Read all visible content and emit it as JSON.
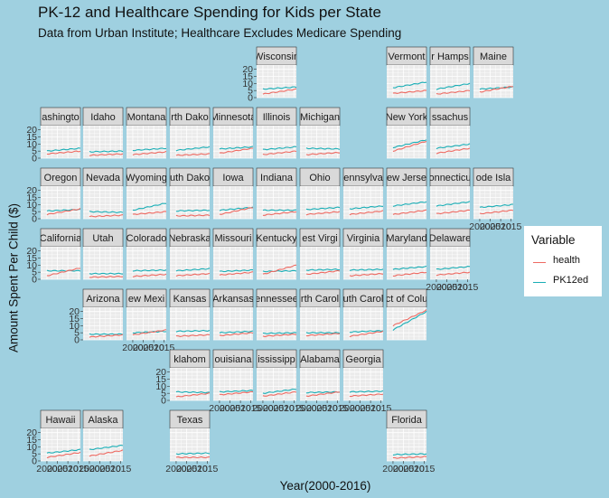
{
  "title": "PK-12 and Healthcare Spending for Kids per State",
  "subtitle": "Data from Urban Institute; Healthcare Excludes Medicare Spending",
  "colors": {
    "health": "#ee6a62",
    "PK12ed": "#1aaeb6",
    "background": "#9fd0e0",
    "panel": "#ebebeb",
    "strip": "#d9d9d9"
  },
  "chart_data": {
    "type": "line",
    "title": "PK-12 and Healthcare Spending for Kids per State",
    "subtitle": "Data from Urban Institute; Healthcare Excludes Medicare Spending",
    "xlabel": "Year(2000-2016)",
    "ylabel": "Amount Spent Per Child  ($)",
    "xlim": [
      1997,
      2016
    ],
    "ylim": [
      0,
      23
    ],
    "y_ticks": [
      "0",
      "5",
      "10",
      "15",
      "20"
    ],
    "x_ticks": [
      "2000",
      "2005",
      "2010",
      "2015"
    ],
    "x_tick_values": [
      2000,
      2005,
      2010,
      2015
    ],
    "grid": true,
    "legend": {
      "title": "Variable",
      "position": "right",
      "entries": [
        "health",
        "PK12ed"
      ]
    },
    "panels": [
      {
        "name": "Wisconsin",
        "strip": "Wisconsin",
        "row": 0,
        "col": 5,
        "health": [
          2.5,
          6
        ],
        "pk12": [
          6,
          7.5
        ]
      },
      {
        "name": "Vermont",
        "strip": "Vermont",
        "row": 0,
        "col": 8,
        "health": [
          3,
          5
        ],
        "pk12": [
          7,
          11
        ]
      },
      {
        "name": "New Hampshire",
        "strip": "r Hamps",
        "row": 0,
        "col": 9,
        "health": [
          2.5,
          5
        ],
        "pk12": [
          6,
          10
        ]
      },
      {
        "name": "Maine",
        "strip": "Maine",
        "row": 0,
        "col": 10,
        "health": [
          4,
          8
        ],
        "pk12": [
          6,
          7.5
        ]
      },
      {
        "name": "Washington",
        "strip": "ashingto",
        "row": 1,
        "col": 0,
        "health": [
          3,
          5
        ],
        "pk12": [
          5,
          7
        ]
      },
      {
        "name": "Idaho",
        "strip": "Idaho",
        "row": 1,
        "col": 1,
        "health": [
          2,
          3
        ],
        "pk12": [
          4.5,
          5
        ]
      },
      {
        "name": "Montana",
        "strip": "Montana",
        "row": 1,
        "col": 2,
        "health": [
          2.5,
          4.5
        ],
        "pk12": [
          5.5,
          7
        ]
      },
      {
        "name": "North Dakota",
        "strip": "rth Dako",
        "row": 1,
        "col": 3,
        "health": [
          2,
          3
        ],
        "pk12": [
          5.5,
          8
        ]
      },
      {
        "name": "Minnesota",
        "strip": "Minnesota",
        "row": 1,
        "col": 4,
        "health": [
          3.5,
          7
        ],
        "pk12": [
          6.5,
          8
        ]
      },
      {
        "name": "Illinois",
        "strip": "Illinois",
        "row": 1,
        "col": 5,
        "health": [
          2.5,
          5
        ],
        "pk12": [
          6,
          8
        ]
      },
      {
        "name": "Michigan",
        "strip": "Michigan",
        "row": 1,
        "col": 6,
        "health": [
          2.5,
          4
        ],
        "pk12": [
          7,
          6.5
        ]
      },
      {
        "name": "New York",
        "strip": "New York",
        "row": 1,
        "col": 8,
        "health": [
          5,
          12
        ],
        "pk12": [
          7.5,
          13
        ]
      },
      {
        "name": "Massachusetts",
        "strip": "ssachus",
        "row": 1,
        "col": 9,
        "health": [
          3.5,
          7
        ],
        "pk12": [
          7,
          10
        ]
      },
      {
        "name": "Oregon",
        "strip": "Oregon",
        "row": 2,
        "col": 0,
        "health": [
          3,
          7
        ],
        "pk12": [
          5.5,
          6.5
        ]
      },
      {
        "name": "Nevada",
        "strip": "Nevada",
        "row": 2,
        "col": 1,
        "health": [
          1.5,
          2.5
        ],
        "pk12": [
          5,
          4.5
        ]
      },
      {
        "name": "Wyoming",
        "strip": "Wyoming",
        "row": 2,
        "col": 2,
        "health": [
          3,
          5
        ],
        "pk12": [
          6,
          11
        ]
      },
      {
        "name": "South Dakota",
        "strip": "uth Dako",
        "row": 2,
        "col": 3,
        "health": [
          2,
          2.5
        ],
        "pk12": [
          5.5,
          6
        ]
      },
      {
        "name": "Iowa",
        "strip": "Iowa",
        "row": 2,
        "col": 4,
        "health": [
          3,
          8
        ],
        "pk12": [
          6,
          8
        ]
      },
      {
        "name": "Indiana",
        "strip": "Indiana",
        "row": 2,
        "col": 5,
        "health": [
          2.5,
          5
        ],
        "pk12": [
          6,
          6
        ]
      },
      {
        "name": "Ohio",
        "strip": "Ohio",
        "row": 2,
        "col": 6,
        "health": [
          3,
          5
        ],
        "pk12": [
          6.5,
          8
        ]
      },
      {
        "name": "Pennsylvania",
        "strip": "ennsylva",
        "row": 2,
        "col": 7,
        "health": [
          3,
          5.5
        ],
        "pk12": [
          7,
          9
        ]
      },
      {
        "name": "New Jersey",
        "strip": "ew Jerse",
        "row": 2,
        "col": 8,
        "health": [
          3,
          6
        ],
        "pk12": [
          9,
          12
        ]
      },
      {
        "name": "Connecticut",
        "strip": "onnecticu",
        "row": 2,
        "col": 9,
        "health": [
          3.5,
          6
        ],
        "pk12": [
          9,
          12
        ]
      },
      {
        "name": "Rhode Island",
        "strip": "ode Isla",
        "row": 2,
        "col": 10,
        "health": [
          3.5,
          6
        ],
        "pk12": [
          8,
          10
        ]
      },
      {
        "name": "California",
        "strip": "California",
        "row": 3,
        "col": 0,
        "health": [
          2.5,
          8
        ],
        "pk12": [
          6,
          6
        ]
      },
      {
        "name": "Utah",
        "strip": "Utah",
        "row": 3,
        "col": 1,
        "health": [
          1.5,
          2
        ],
        "pk12": [
          4,
          4
        ]
      },
      {
        "name": "Colorado",
        "strip": "Colorado",
        "row": 3,
        "col": 2,
        "health": [
          2,
          3.5
        ],
        "pk12": [
          6,
          6.5
        ]
      },
      {
        "name": "Nebraska",
        "strip": "Nebraska",
        "row": 3,
        "col": 3,
        "health": [
          2.5,
          4
        ],
        "pk12": [
          6,
          7.5
        ]
      },
      {
        "name": "Missouri",
        "strip": "Missouri",
        "row": 3,
        "col": 4,
        "health": [
          3,
          5
        ],
        "pk12": [
          5.5,
          6.5
        ]
      },
      {
        "name": "Kentucky",
        "strip": "Kentucky",
        "row": 3,
        "col": 5,
        "health": [
          3.5,
          10
        ],
        "pk12": [
          5.5,
          6
        ]
      },
      {
        "name": "West Virginia",
        "strip": "est Virgi",
        "row": 3,
        "col": 6,
        "health": [
          3.5,
          6
        ],
        "pk12": [
          6.5,
          7
        ]
      },
      {
        "name": "Virginia",
        "strip": "Virginia",
        "row": 3,
        "col": 7,
        "health": [
          2.5,
          4
        ],
        "pk12": [
          6.5,
          7
        ]
      },
      {
        "name": "Maryland",
        "strip": "Maryland",
        "row": 3,
        "col": 8,
        "health": [
          2.5,
          5
        ],
        "pk12": [
          7,
          9
        ]
      },
      {
        "name": "Delaware",
        "strip": "Delaware",
        "row": 3,
        "col": 9,
        "health": [
          3,
          5
        ],
        "pk12": [
          7,
          9
        ]
      },
      {
        "name": "Arizona",
        "strip": "Arizona",
        "row": 4,
        "col": 1,
        "health": [
          2,
          3.5
        ],
        "pk12": [
          4,
          4
        ]
      },
      {
        "name": "New Mexico",
        "strip": "ew Mexi",
        "row": 4,
        "col": 2,
        "health": [
          3.5,
          7
        ],
        "pk12": [
          5,
          6
        ]
      },
      {
        "name": "Kansas",
        "strip": "Kansas",
        "row": 4,
        "col": 3,
        "health": [
          2.5,
          3.5
        ],
        "pk12": [
          6,
          6.5
        ]
      },
      {
        "name": "Arkansas",
        "strip": "Arkansas",
        "row": 4,
        "col": 4,
        "health": [
          3,
          5
        ],
        "pk12": [
          5,
          6
        ]
      },
      {
        "name": "Tennessee",
        "strip": "ennessee",
        "row": 4,
        "col": 5,
        "health": [
          2.5,
          4
        ],
        "pk12": [
          4.5,
          5
        ]
      },
      {
        "name": "North Carolina",
        "strip": "rth Carol",
        "row": 4,
        "col": 6,
        "health": [
          3,
          4.5
        ],
        "pk12": [
          5,
          5
        ]
      },
      {
        "name": "South Carolina",
        "strip": "uth Carol",
        "row": 4,
        "col": 7,
        "health": [
          2.5,
          6
        ],
        "pk12": [
          5.5,
          6.5
        ]
      },
      {
        "name": "District of Columbia",
        "strip": "ct of Colu",
        "row": 4,
        "col": 8,
        "health": [
          10,
          21
        ],
        "pk12": [
          7,
          20
        ]
      },
      {
        "name": "Oklahoma",
        "strip": "klahom",
        "row": 5,
        "col": 3,
        "health": [
          2.5,
          5
        ],
        "pk12": [
          6,
          5.5
        ]
      },
      {
        "name": "Louisiana",
        "strip": "ouisiana",
        "row": 5,
        "col": 4,
        "health": [
          4,
          6
        ],
        "pk12": [
          6,
          7
        ]
      },
      {
        "name": "Mississippi",
        "strip": "ississipp",
        "row": 5,
        "col": 5,
        "health": [
          3,
          6
        ],
        "pk12": [
          5,
          8
        ]
      },
      {
        "name": "Alabama",
        "strip": "Alabama",
        "row": 5,
        "col": 6,
        "health": [
          3,
          6
        ],
        "pk12": [
          5.5,
          6
        ]
      },
      {
        "name": "Georgia",
        "strip": "Georgia",
        "row": 5,
        "col": 7,
        "health": [
          3,
          4.5
        ],
        "pk12": [
          6,
          6.5
        ]
      },
      {
        "name": "Hawaii",
        "strip": "Hawaii",
        "row": 6,
        "col": 0,
        "health": [
          2.5,
          6
        ],
        "pk12": [
          5.5,
          8
        ]
      },
      {
        "name": "Alaska",
        "strip": "Alaska",
        "row": 6,
        "col": 1,
        "health": [
          3.5,
          7.5
        ],
        "pk12": [
          8,
          11
        ]
      },
      {
        "name": "Texas",
        "strip": "Texas",
        "row": 6,
        "col": 3,
        "health": [
          2.5,
          2.5
        ],
        "pk12": [
          5,
          5.5
        ]
      },
      {
        "name": "Florida",
        "strip": "Florida",
        "row": 6,
        "col": 8,
        "health": [
          2,
          3
        ],
        "pk12": [
          4.5,
          5
        ]
      }
    ]
  }
}
